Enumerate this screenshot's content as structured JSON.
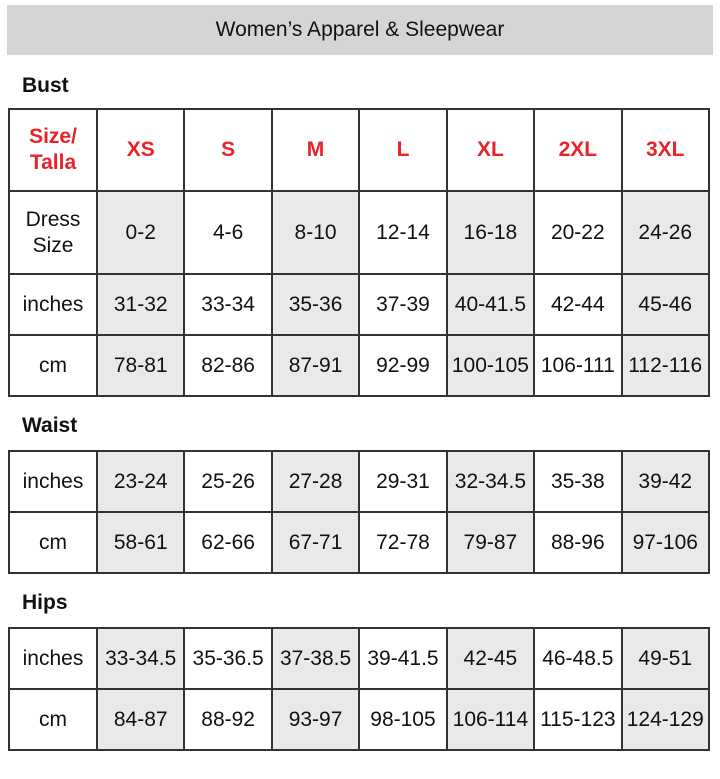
{
  "title": "Women’s Apparel & Sleepwear",
  "colors": {
    "header_text": "#e8242b",
    "shaded_cell": "#e9e9e9",
    "title_band": "#d4d5d6"
  },
  "sections": [
    {
      "label": "Bust",
      "header": {
        "label": "Size/\nTalla",
        "sizes": [
          "XS",
          "S",
          "M",
          "L",
          "XL",
          "2XL",
          "3XL"
        ]
      },
      "rows": [
        {
          "label": "Dress\nSize",
          "values": [
            "0-2",
            "4-6",
            "8-10",
            "12-14",
            "16-18",
            "20-22",
            "24-26"
          ]
        },
        {
          "label": "inches",
          "values": [
            "31-32",
            "33-34",
            "35-36",
            "37-39",
            "40-41.5",
            "42-44",
            "45-46"
          ]
        },
        {
          "label": "cm",
          "values": [
            "78-81",
            "82-86",
            "87-91",
            "92-99",
            "100-105",
            "106-111",
            "112-116"
          ]
        }
      ]
    },
    {
      "label": "Waist",
      "rows": [
        {
          "label": "inches",
          "values": [
            "23-24",
            "25-26",
            "27-28",
            "29-31",
            "32-34.5",
            "35-38",
            "39-42"
          ]
        },
        {
          "label": "cm",
          "values": [
            "58-61",
            "62-66",
            "67-71",
            "72-78",
            "79-87",
            "88-96",
            "97-106"
          ]
        }
      ]
    },
    {
      "label": "Hips",
      "rows": [
        {
          "label": "inches",
          "values": [
            "33-34.5",
            "35-36.5",
            "37-38.5",
            "39-41.5",
            "42-45",
            "46-48.5",
            "49-51"
          ]
        },
        {
          "label": "cm",
          "values": [
            "84-87",
            "88-92",
            "93-97",
            "98-105",
            "106-114",
            "115-123",
            "124-129"
          ]
        }
      ]
    }
  ]
}
